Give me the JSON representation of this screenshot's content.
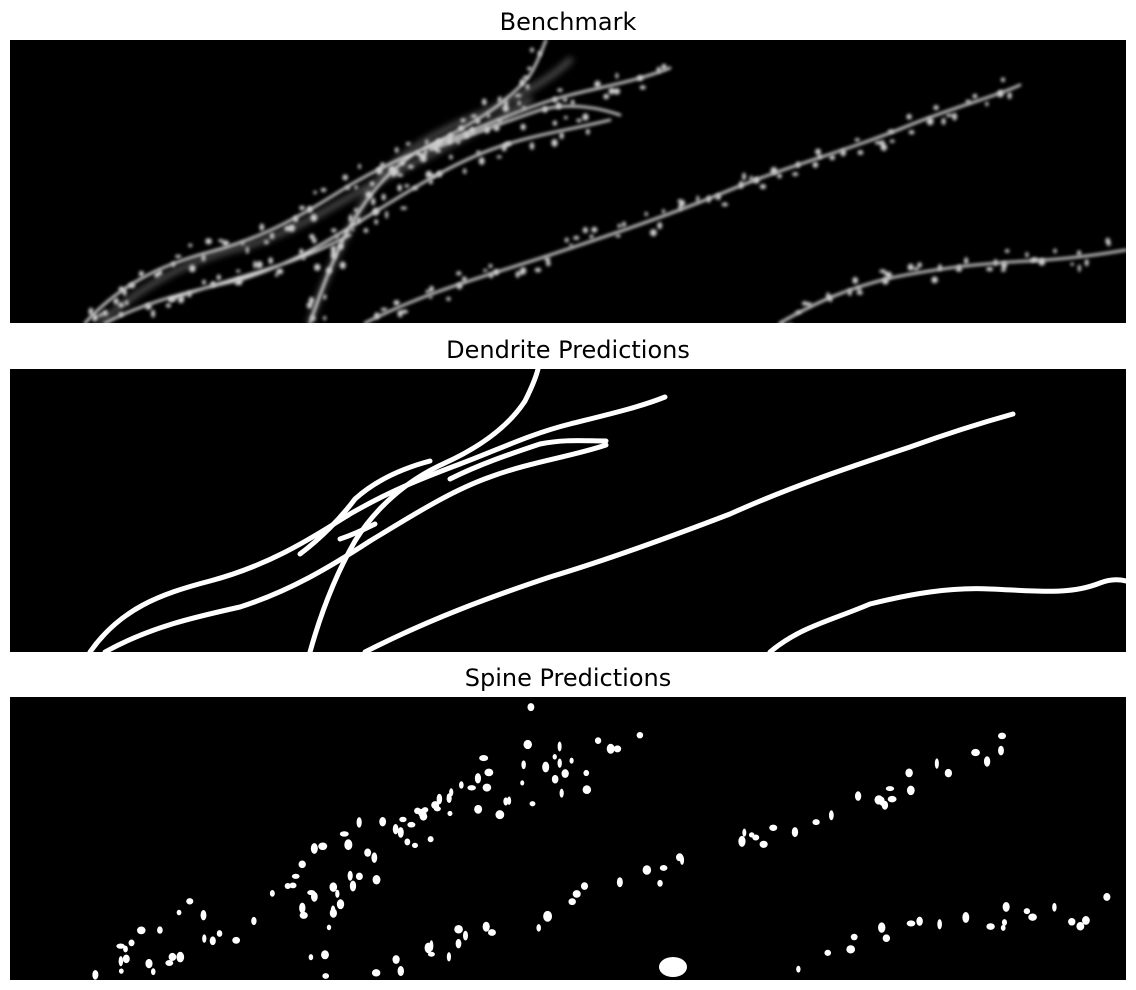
{
  "panels": [
    {
      "title": "Benchmark",
      "kind": "microscopy-image"
    },
    {
      "title": "Dendrite Predictions",
      "kind": "binary-mask-dendrites"
    },
    {
      "title": "Spine Predictions",
      "kind": "binary-mask-spines"
    }
  ],
  "colors": {
    "background": "#000000",
    "foreground": "#ffffff",
    "page": "#ffffff"
  }
}
